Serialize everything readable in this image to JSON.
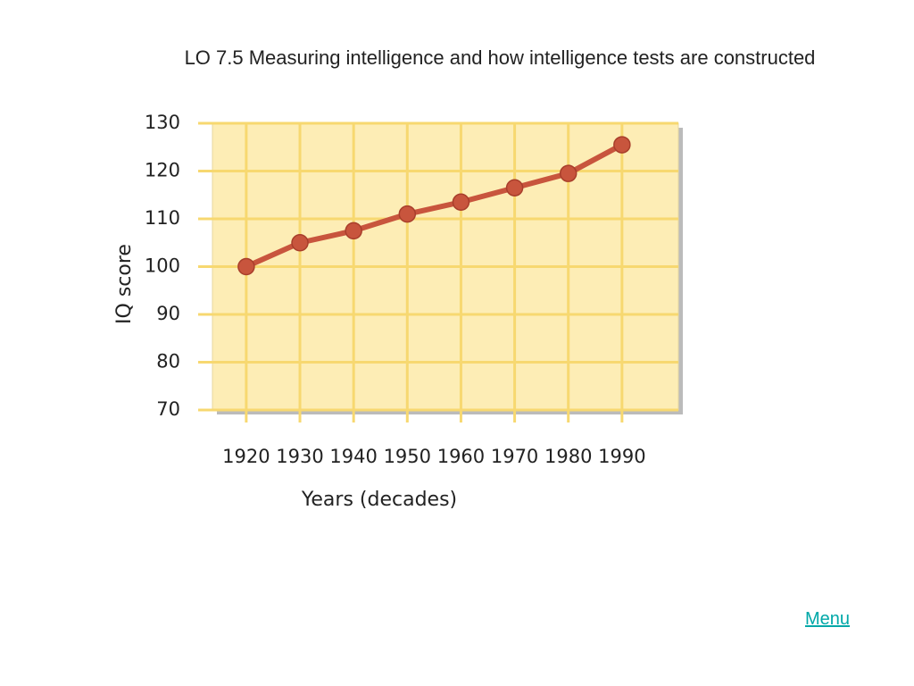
{
  "chart_data": {
    "type": "line",
    "title": "LO 7.5 Measuring intelligence and how intelligence tests are constructed",
    "xlabel": "Years (decades)",
    "ylabel": "IQ score",
    "x": [
      1920,
      1930,
      1940,
      1950,
      1960,
      1970,
      1980,
      1990
    ],
    "series": [
      {
        "name": "IQ score",
        "color": "#c8553d",
        "values": [
          100,
          105,
          107.5,
          111,
          113.5,
          116.5,
          119.5,
          125.5
        ]
      }
    ],
    "xlim": [
      1913.7,
      2000.5
    ],
    "xticks": [
      1920,
      1930,
      1940,
      1950,
      1960,
      1970,
      1980,
      1990
    ],
    "ylim": [
      70,
      130
    ],
    "yticks": [
      70,
      80,
      90,
      100,
      110,
      120,
      130
    ],
    "grid": true,
    "background": "#fdedb5",
    "grid_color": "#f7d870"
  },
  "menu_link": "Menu"
}
